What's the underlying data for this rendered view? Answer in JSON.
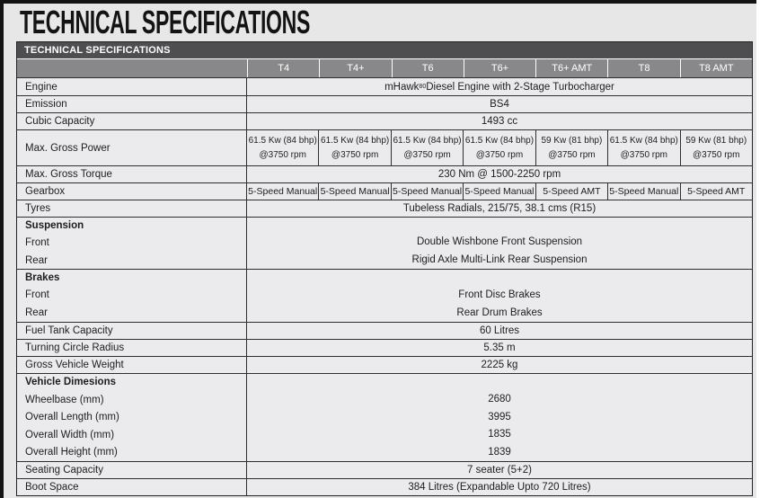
{
  "page_title": "TECHNICAL SPECIFICATIONS",
  "table": {
    "title": "TECHNICAL SPECIFICATIONS",
    "columns": [
      "T4",
      "T4+",
      "T6",
      "T6+",
      "T6+ AMT",
      "T8",
      "T8 AMT"
    ],
    "engine": {
      "label": "Engine",
      "value_prefix": "mHawk",
      "value_sup": "80",
      "value_suffix": " Diesel Engine with 2-Stage Turbocharger"
    },
    "emission": {
      "label": "Emission",
      "value": "BS4"
    },
    "cubic_capacity": {
      "label": "Cubic Capacity",
      "value": "1493 cc"
    },
    "max_gross_power": {
      "label": "Max. Gross Power",
      "cells": [
        {
          "line1": "61.5 Kw (84 bhp)",
          "line2": "@3750 rpm"
        },
        {
          "line1": "61.5 Kw (84 bhp)",
          "line2": "@3750 rpm"
        },
        {
          "line1": "61.5 Kw (84 bhp)",
          "line2": "@3750 rpm"
        },
        {
          "line1": "61.5 Kw (84 bhp)",
          "line2": "@3750 rpm"
        },
        {
          "line1": "59 Kw (81 bhp)",
          "line2": "@3750 rpm"
        },
        {
          "line1": "61.5 Kw (84 bhp)",
          "line2": "@3750 rpm"
        },
        {
          "line1": "59 Kw (81 bhp)",
          "line2": "@3750 rpm"
        }
      ]
    },
    "max_gross_torque": {
      "label": "Max. Gross Torque",
      "value": "230 Nm @ 1500-2250 rpm"
    },
    "gearbox": {
      "label": "Gearbox",
      "cells": [
        "5-Speed Manual",
        "5-Speed Manual",
        "5-Speed Manual",
        "5-Speed Manual",
        "5-Speed AMT",
        "5-Speed Manual",
        "5-Speed AMT"
      ]
    },
    "tyres": {
      "label": "Tyres",
      "value": "Tubeless Radials, 215/75, 38.1 cms (R15)"
    },
    "suspension": {
      "label": "Suspension",
      "front_label": "Front",
      "front_value": "Double Wishbone Front Suspension",
      "rear_label": "Rear",
      "rear_value": "Rigid Axle Multi-Link Rear Suspension"
    },
    "brakes": {
      "label": "Brakes",
      "front_label": "Front",
      "front_value": "Front Disc Brakes",
      "rear_label": "Rear",
      "rear_value": "Rear Drum Brakes"
    },
    "fuel_tank_capacity": {
      "label": "Fuel Tank Capacity",
      "value": "60 Litres"
    },
    "turning_circle_radius": {
      "label": "Turning Circle Radius",
      "value": "5.35 m"
    },
    "gross_vehicle_weight": {
      "label": "Gross Vehicle Weight",
      "value": "2225 kg"
    },
    "vehicle_dimensions": {
      "label": "Vehicle Dimesions",
      "rows": [
        {
          "label": "Wheelbase (mm)",
          "value": "2680"
        },
        {
          "label": "Overall Length (mm)",
          "value": "3995"
        },
        {
          "label": "Overall Width (mm)",
          "value": "1835"
        },
        {
          "label": "Overall Height (mm)",
          "value": "1839"
        }
      ]
    },
    "seating_capacity": {
      "label": "Seating Capacity",
      "value": "7 seater (5+2)"
    },
    "boot_space": {
      "label": "Boot Space",
      "value": "384 Litres (Expandable Upto 720 Litres)"
    }
  },
  "colors": {
    "title_bar_bg": "#4e4e50",
    "column_header_bg": "#88888a",
    "row_bg": "#ebebed",
    "border_dark": "#2f2f31",
    "page_bg": "#e7e7e8"
  }
}
